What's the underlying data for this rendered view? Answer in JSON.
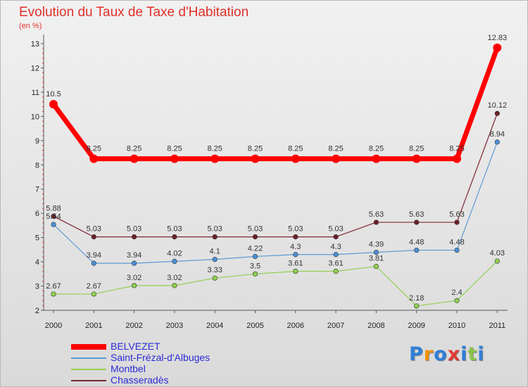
{
  "chart_data": {
    "type": "line",
    "title": "Evolution du Taux de Taxe d'Habitation",
    "ylabel": "(en %)",
    "xlabel": "",
    "ylim": [
      2,
      13
    ],
    "yticks": [
      "2",
      "3",
      "4",
      "5",
      "6",
      "7",
      "8",
      "9",
      "10",
      "11",
      "12",
      "13"
    ],
    "categories": [
      "2000",
      "2001",
      "2002",
      "2003",
      "2004",
      "2005",
      "2006",
      "2007",
      "2008",
      "2009",
      "2010",
      "2011"
    ],
    "series": [
      {
        "name": "BELVEZET",
        "color": "#ff0000",
        "values": [
          10.5,
          8.25,
          8.25,
          8.25,
          8.25,
          8.25,
          8.25,
          8.25,
          8.25,
          8.25,
          8.25,
          12.83
        ],
        "labels": [
          "10.5",
          "8.25",
          "8.25",
          "8.25",
          "8.25",
          "8.25",
          "8.25",
          "8.25",
          "8.25",
          "8.25",
          "8.25",
          "12.83"
        ]
      },
      {
        "name": "Saint-Frézal-d'Albuges",
        "color": "#5b9bd5",
        "values": [
          5.54,
          3.94,
          3.94,
          4.02,
          4.1,
          4.22,
          4.3,
          4.3,
          4.39,
          4.48,
          4.48,
          8.94
        ],
        "labels": [
          "5.54",
          "3.94",
          "3.94",
          "4.02",
          "4.1",
          "4.22",
          "4.3",
          "4.3",
          "4.39",
          "4.48",
          "4.48",
          "8.94"
        ]
      },
      {
        "name": "Montbel",
        "color": "#92d050",
        "values": [
          2.67,
          2.67,
          3.02,
          3.02,
          3.33,
          3.5,
          3.61,
          3.61,
          3.81,
          2.18,
          2.4,
          4.03
        ],
        "labels": [
          "2.67",
          "2.67",
          "3.02",
          "3.02",
          "3.33",
          "3.5",
          "3.61",
          "3.61",
          "3.81",
          "2.18",
          "2.4",
          "4.03"
        ]
      },
      {
        "name": "Chasseradès",
        "color": "#7b2730",
        "values": [
          5.88,
          5.03,
          5.03,
          5.03,
          5.03,
          5.03,
          5.03,
          5.03,
          5.63,
          5.63,
          5.63,
          10.12
        ],
        "labels": [
          "5.88",
          "5.03",
          "5.03",
          "5.03",
          "5.03",
          "5.03",
          "5.03",
          "5.03",
          "5.63",
          "5.63",
          "5.63",
          "10.12"
        ]
      }
    ],
    "legend": {
      "position": "bottom-left"
    }
  },
  "logo": {
    "text": "Proxiti",
    "letters": [
      "P",
      "r",
      "o",
      "x",
      "i",
      "t",
      "i"
    ],
    "colors": [
      "#2f7fd8",
      "#f39200",
      "#2f7fd8",
      "#e53935",
      "#2f7fd8",
      "#8bc34a",
      "#2f7fd8"
    ]
  }
}
